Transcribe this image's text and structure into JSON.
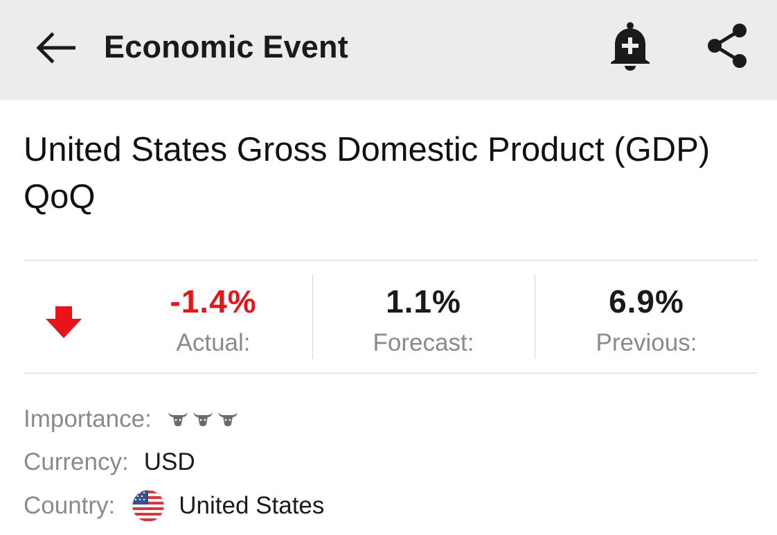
{
  "app_bar": {
    "title": "Economic Event",
    "back_icon": "arrow-left-icon",
    "alert_icon": "bell-plus-icon",
    "share_icon": "share-icon",
    "background": "#ececec"
  },
  "event": {
    "title": "United States Gross Domestic Product (GDP) QoQ"
  },
  "stats": {
    "direction_icon": "arrow-down-icon",
    "direction_color": "#e8141a",
    "actual": {
      "value": "-1.4%",
      "label": "Actual:"
    },
    "forecast": {
      "value": "1.1%",
      "label": "Forecast:"
    },
    "previous": {
      "value": "6.9%",
      "label": "Previous:"
    }
  },
  "details": {
    "importance": {
      "label": "Importance:",
      "level": 3,
      "max": 3,
      "icon": "bull-icon"
    },
    "currency": {
      "label": "Currency:",
      "value": "USD"
    },
    "country": {
      "label": "Country:",
      "value": "United States",
      "flag_icon": "us-flag-icon"
    }
  }
}
